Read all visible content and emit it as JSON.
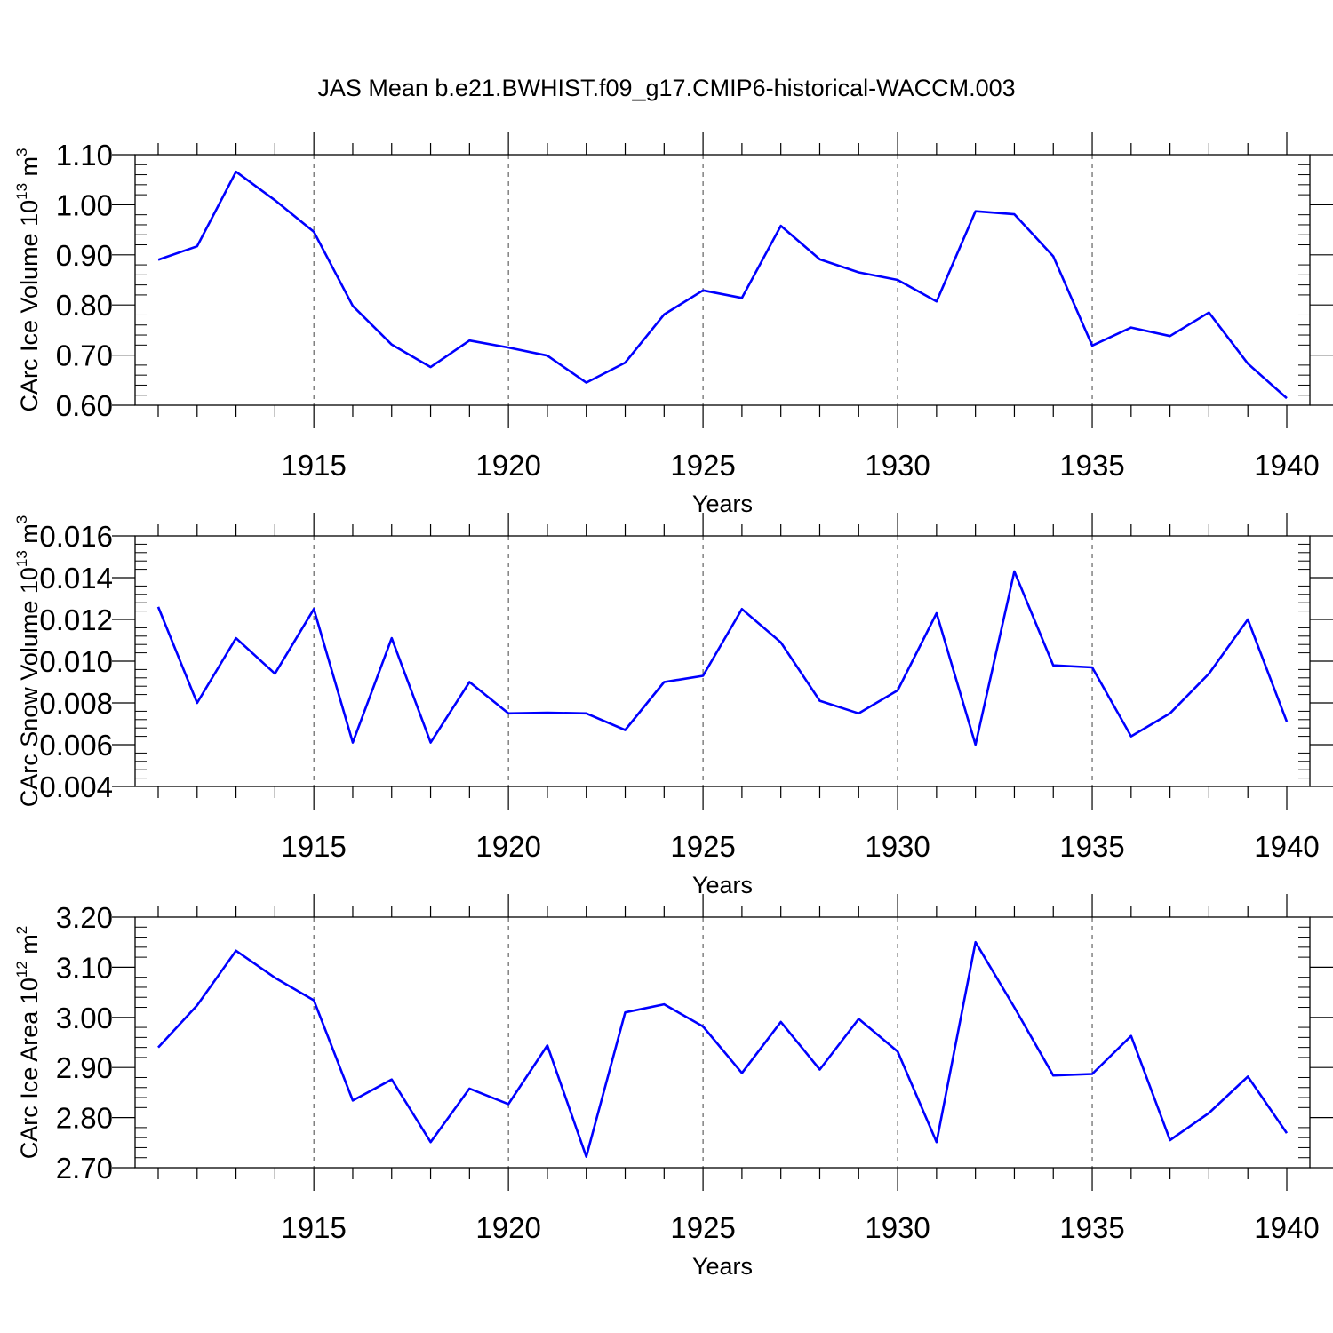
{
  "title": "JAS Mean b.e21.BWHIST.f09_g17.CMIP6-historical-WACCM.003",
  "colors": {
    "line": "#0000ff",
    "axis": "#000000",
    "grid": "#444444"
  },
  "chart_data": [
    {
      "type": "line",
      "xlabel": "Years",
      "ylabel": {
        "text": "CArc Ice Volume 10",
        "sup": "13",
        "unit": " m",
        "unit_sup": "3"
      },
      "xlim": [
        1911,
        1940
      ],
      "ylim": [
        0.6,
        1.1
      ],
      "xticks": [
        1915,
        1920,
        1925,
        1930,
        1935,
        1940
      ],
      "xtick_labels": [
        "1915",
        "1920",
        "1925",
        "1930",
        "1935",
        "1940"
      ],
      "yticks": [
        0.6,
        0.7,
        0.8,
        0.9,
        1.0,
        1.1
      ],
      "ytick_labels": [
        "0.60",
        "0.70",
        "0.80",
        "0.90",
        "1.00",
        "1.10"
      ],
      "grid": "vertical dashed at major x ticks",
      "x": [
        1911,
        1912,
        1913,
        1914,
        1915,
        1916,
        1917,
        1918,
        1919,
        1920,
        1921,
        1922,
        1923,
        1924,
        1925,
        1926,
        1927,
        1928,
        1929,
        1930,
        1931,
        1932,
        1933,
        1934,
        1935,
        1936,
        1937,
        1938,
        1939,
        1940
      ],
      "values": [
        0.89,
        0.917,
        1.066,
        1.009,
        0.946,
        0.798,
        0.721,
        0.676,
        0.729,
        0.715,
        0.699,
        0.645,
        0.685,
        0.781,
        0.829,
        0.814,
        0.958,
        0.891,
        0.865,
        0.85,
        0.807,
        0.987,
        0.981,
        0.897,
        0.719,
        0.755,
        0.738,
        0.785,
        0.683,
        0.614
      ]
    },
    {
      "type": "line",
      "xlabel": "Years",
      "ylabel": {
        "text": "CArc Snow Volume 10",
        "sup": "13",
        "unit": " m",
        "unit_sup": "3"
      },
      "xlim": [
        1911,
        1940
      ],
      "ylim": [
        0.004,
        0.016
      ],
      "xticks": [
        1915,
        1920,
        1925,
        1930,
        1935,
        1940
      ],
      "xtick_labels": [
        "1915",
        "1920",
        "1925",
        "1930",
        "1935",
        "1940"
      ],
      "yticks": [
        0.004,
        0.006,
        0.008,
        0.01,
        0.012,
        0.014,
        0.016
      ],
      "ytick_labels": [
        "0.004",
        "0.006",
        "0.008",
        "0.010",
        "0.012",
        "0.014",
        "0.016"
      ],
      "grid": "vertical dashed at major x ticks",
      "x": [
        1911,
        1912,
        1913,
        1914,
        1915,
        1916,
        1917,
        1918,
        1919,
        1920,
        1921,
        1922,
        1923,
        1924,
        1925,
        1926,
        1927,
        1928,
        1929,
        1930,
        1931,
        1932,
        1933,
        1934,
        1935,
        1936,
        1937,
        1938,
        1939,
        1940
      ],
      "values": [
        0.0126,
        0.008,
        0.0111,
        0.0094,
        0.0125,
        0.0061,
        0.0111,
        0.0061,
        0.009,
        0.0075,
        0.00753,
        0.0075,
        0.0067,
        0.009,
        0.0093,
        0.0125,
        0.0109,
        0.0081,
        0.0075,
        0.0086,
        0.0123,
        0.006,
        0.0143,
        0.0098,
        0.0097,
        0.0064,
        0.0075,
        0.0094,
        0.012,
        0.0071
      ]
    },
    {
      "type": "line",
      "xlabel": "Years",
      "ylabel": {
        "text": "CArc Ice Area 10",
        "sup": "12",
        "unit": " m",
        "unit_sup": "2"
      },
      "xlim": [
        1911,
        1940
      ],
      "ylim": [
        2.7,
        3.2
      ],
      "xticks": [
        1915,
        1920,
        1925,
        1930,
        1935,
        1940
      ],
      "xtick_labels": [
        "1915",
        "1920",
        "1925",
        "1930",
        "1935",
        "1940"
      ],
      "yticks": [
        2.7,
        2.8,
        2.9,
        3.0,
        3.1,
        3.2
      ],
      "ytick_labels": [
        "2.70",
        "2.80",
        "2.90",
        "3.00",
        "3.10",
        "3.20"
      ],
      "grid": "vertical dashed at major x ticks",
      "x": [
        1911,
        1912,
        1913,
        1914,
        1915,
        1916,
        1917,
        1918,
        1919,
        1920,
        1921,
        1922,
        1923,
        1924,
        1925,
        1926,
        1927,
        1928,
        1929,
        1930,
        1931,
        1932,
        1933,
        1934,
        1935,
        1936,
        1937,
        1938,
        1939,
        1940
      ],
      "values": [
        2.94,
        3.024,
        3.133,
        3.079,
        3.034,
        2.834,
        2.876,
        2.751,
        2.858,
        2.827,
        2.944,
        2.722,
        3.01,
        3.026,
        2.982,
        2.889,
        2.991,
        2.896,
        2.997,
        2.932,
        2.751,
        3.15,
        3.02,
        2.884,
        2.887,
        2.963,
        2.755,
        2.809,
        2.882,
        2.769
      ]
    }
  ]
}
